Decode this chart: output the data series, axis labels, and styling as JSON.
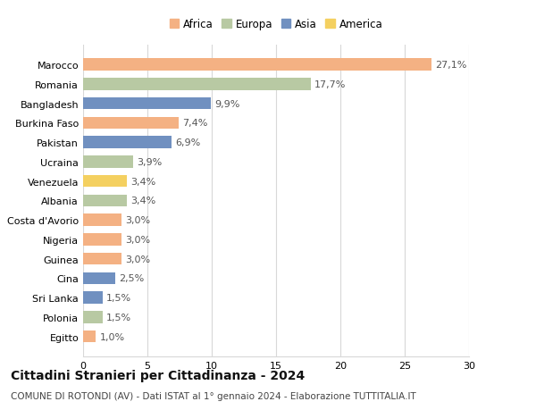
{
  "countries": [
    "Marocco",
    "Romania",
    "Bangladesh",
    "Burkina Faso",
    "Pakistan",
    "Ucraina",
    "Venezuela",
    "Albania",
    "Costa d'Avorio",
    "Nigeria",
    "Guinea",
    "Cina",
    "Sri Lanka",
    "Polonia",
    "Egitto"
  ],
  "values": [
    27.1,
    17.7,
    9.9,
    7.4,
    6.9,
    3.9,
    3.4,
    3.4,
    3.0,
    3.0,
    3.0,
    2.5,
    1.5,
    1.5,
    1.0
  ],
  "labels": [
    "27,1%",
    "17,7%",
    "9,9%",
    "7,4%",
    "6,9%",
    "3,9%",
    "3,4%",
    "3,4%",
    "3,0%",
    "3,0%",
    "3,0%",
    "2,5%",
    "1,5%",
    "1,5%",
    "1,0%"
  ],
  "continents": [
    "Africa",
    "Europa",
    "Asia",
    "Africa",
    "Asia",
    "Europa",
    "America",
    "Europa",
    "Africa",
    "Africa",
    "Africa",
    "Asia",
    "Asia",
    "Europa",
    "Africa"
  ],
  "colors": {
    "Africa": "#F4B183",
    "Europa": "#B8C9A3",
    "Asia": "#7090C0",
    "America": "#F4D060"
  },
  "legend_order": [
    "Africa",
    "Europa",
    "Asia",
    "America"
  ],
  "title": "Cittadini Stranieri per Cittadinanza - 2024",
  "subtitle": "COMUNE DI ROTONDI (AV) - Dati ISTAT al 1° gennaio 2024 - Elaborazione TUTTITALIA.IT",
  "xlim": [
    0,
    30
  ],
  "xticks": [
    0,
    5,
    10,
    15,
    20,
    25,
    30
  ],
  "background_color": "#ffffff",
  "grid_color": "#d8d8d8",
  "title_fontsize": 10,
  "subtitle_fontsize": 7.5,
  "label_fontsize": 8,
  "tick_fontsize": 8,
  "legend_fontsize": 8.5
}
